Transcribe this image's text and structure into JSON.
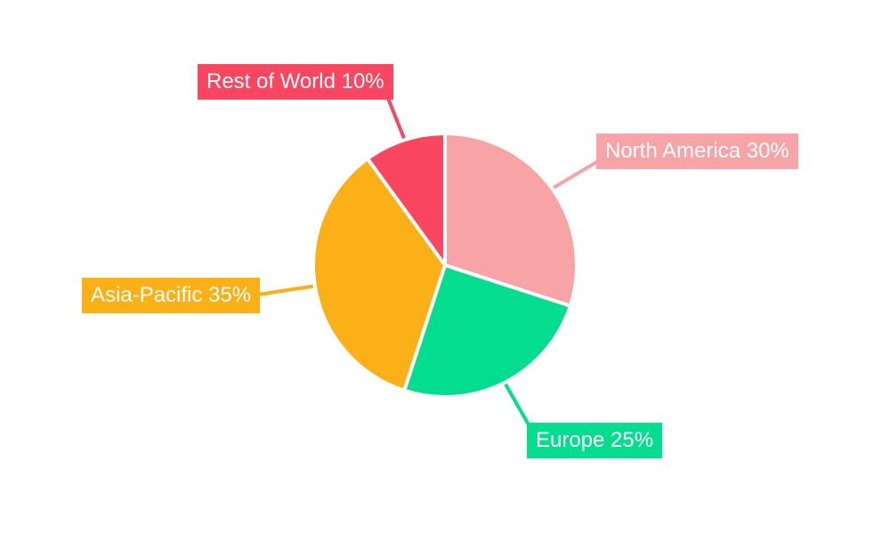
{
  "chart_data": {
    "type": "pie",
    "title": "",
    "categories": [
      "North America",
      "Europe",
      "Asia-Pacific",
      "Rest of World"
    ],
    "values": [
      30,
      25,
      35,
      10
    ],
    "unit": "%",
    "labels": [
      "North America 30%",
      "Europe 25%",
      "Asia-Pacific 35%",
      "Rest of World 10%"
    ],
    "colors": [
      "#f8a3a6",
      "#03dd90",
      "#fcb017",
      "#fa4660"
    ],
    "label_text_color": "#ffffff",
    "background_color": "#ffffff",
    "slice_gap_color": "#ffffff",
    "start_angle_deg": -90,
    "direction": "clockwise",
    "legend_position": "outside-callout-labels",
    "grid": false
  }
}
